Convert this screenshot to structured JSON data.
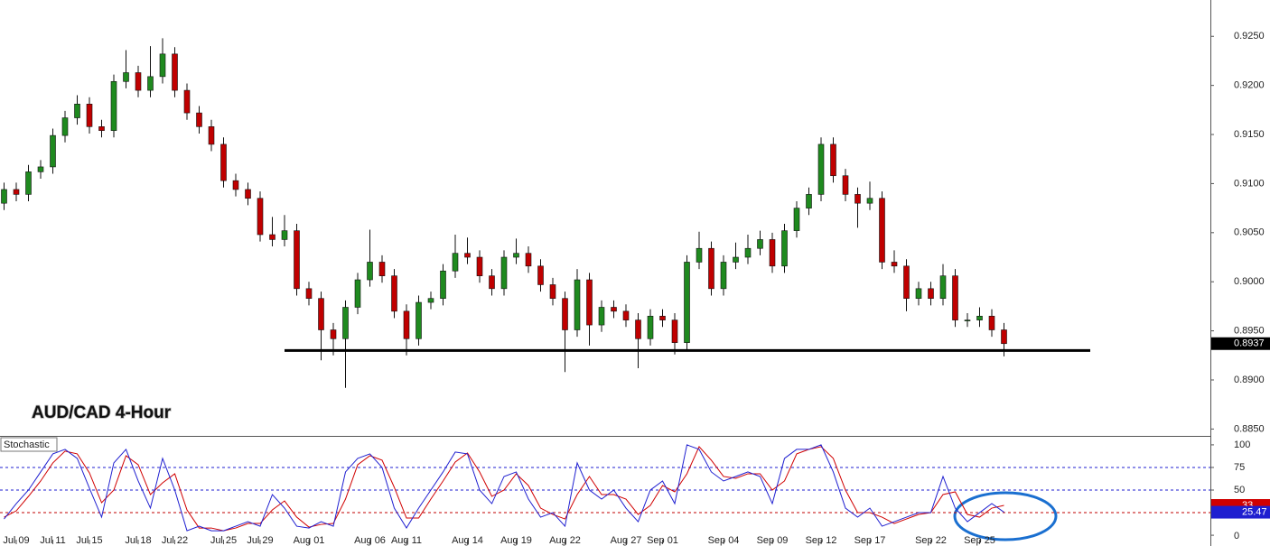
{
  "chart_data": [
    {
      "type": "candlestick",
      "title": "AUD/CAD 4-Hour",
      "up_color": "#1f8a1f",
      "down_color": "#c00000",
      "categories": [
        null,
        "Jul 09",
        null,
        null,
        "Jul 11",
        null,
        null,
        "Jul 15",
        null,
        null,
        null,
        "Jul 18",
        null,
        null,
        "Jul 22",
        null,
        null,
        null,
        "Jul 25",
        null,
        null,
        "Jul 29",
        null,
        null,
        null,
        "Aug 01",
        null,
        null,
        null,
        null,
        "Aug 06",
        null,
        null,
        "Aug 11",
        null,
        null,
        null,
        null,
        "Aug 14",
        null,
        null,
        null,
        "Aug 19",
        null,
        null,
        null,
        "Aug 22",
        null,
        null,
        null,
        null,
        "Aug 27",
        null,
        null,
        "Sep 01",
        null,
        null,
        null,
        null,
        "Sep 04",
        null,
        null,
        null,
        "Sep 09",
        null,
        null,
        null,
        "Sep 12",
        null,
        null,
        null,
        "Sep 17",
        null,
        null,
        null,
        null,
        "Sep 22",
        null,
        null,
        null,
        "Sep 25",
        null,
        null
      ],
      "open": [
        0.908,
        0.9094,
        0.9089,
        0.9112,
        0.9117,
        0.9149,
        0.9167,
        0.9181,
        0.9158,
        0.9154,
        0.9204,
        0.9213,
        0.9195,
        0.9209,
        0.9232,
        0.9195,
        0.9172,
        0.9158,
        0.914,
        0.9103,
        0.9094,
        0.9085,
        0.9048,
        0.9043,
        0.9052,
        0.8993,
        0.8983,
        0.8951,
        0.8942,
        0.8974,
        0.9002,
        0.902,
        0.9006,
        0.897,
        0.8942,
        0.8979,
        0.8983,
        0.9011,
        0.9029,
        0.9025,
        0.9006,
        0.8993,
        0.9025,
        0.9029,
        0.9016,
        0.8997,
        0.8983,
        0.8951,
        0.9002,
        0.8956,
        0.8974,
        0.897,
        0.8961,
        0.8942,
        0.8965,
        0.8961,
        0.8938,
        0.902,
        0.9034,
        0.8993,
        0.902,
        0.9025,
        0.9034,
        0.9043,
        0.9016,
        0.9052,
        0.9075,
        0.9089,
        0.914,
        0.9108,
        0.9089,
        0.908,
        0.9085,
        0.902,
        0.9016,
        0.8983,
        0.8993,
        0.8983,
        0.9006,
        0.8961,
        0.8961,
        0.8965,
        0.8951
      ],
      "high": [
        0.9101,
        0.9101,
        0.9119,
        0.9124,
        0.9156,
        0.9174,
        0.919,
        0.9188,
        0.9165,
        0.9211,
        0.9236,
        0.922,
        0.924,
        0.9248,
        0.9239,
        0.9202,
        0.9179,
        0.9165,
        0.9147,
        0.911,
        0.9101,
        0.9092,
        0.9066,
        0.9068,
        0.9059,
        0.9,
        0.899,
        0.8958,
        0.8981,
        0.9009,
        0.9053,
        0.9027,
        0.9013,
        0.8977,
        0.8986,
        0.899,
        0.9018,
        0.9048,
        0.9045,
        0.9032,
        0.9013,
        0.9032,
        0.9044,
        0.9036,
        0.9023,
        0.9004,
        0.899,
        0.9013,
        0.9009,
        0.8981,
        0.8981,
        0.8977,
        0.8968,
        0.8972,
        0.8972,
        0.8968,
        0.9027,
        0.9051,
        0.9041,
        0.9027,
        0.904,
        0.9048,
        0.9052,
        0.905,
        0.9059,
        0.9082,
        0.9096,
        0.9147,
        0.9147,
        0.9115,
        0.9096,
        0.9102,
        0.9092,
        0.9032,
        0.9023,
        0.9,
        0.9,
        0.9018,
        0.9013,
        0.8968,
        0.8974,
        0.8972,
        0.8958
      ],
      "low": [
        0.9073,
        0.9082,
        0.9082,
        0.9105,
        0.911,
        0.9142,
        0.916,
        0.9151,
        0.9147,
        0.9147,
        0.9197,
        0.9188,
        0.9188,
        0.9202,
        0.9188,
        0.9165,
        0.9151,
        0.9133,
        0.9096,
        0.9087,
        0.9078,
        0.9041,
        0.9036,
        0.9036,
        0.8986,
        0.8976,
        0.892,
        0.8925,
        0.8892,
        0.8967,
        0.8995,
        0.8999,
        0.8963,
        0.8925,
        0.8935,
        0.8972,
        0.8976,
        0.9004,
        0.9018,
        0.8999,
        0.8986,
        0.8986,
        0.9018,
        0.9009,
        0.899,
        0.8976,
        0.8908,
        0.8944,
        0.8935,
        0.8949,
        0.8963,
        0.8954,
        0.8912,
        0.8935,
        0.8954,
        0.8926,
        0.8931,
        0.9013,
        0.8986,
        0.8986,
        0.9013,
        0.9018,
        0.9027,
        0.9009,
        0.9009,
        0.9045,
        0.9068,
        0.9082,
        0.9101,
        0.9082,
        0.9055,
        0.9073,
        0.9013,
        0.9009,
        0.897,
        0.8976,
        0.8976,
        0.8976,
        0.8954,
        0.8954,
        0.8954,
        0.8944,
        0.8924
      ],
      "close": [
        0.9094,
        0.9089,
        0.9112,
        0.9117,
        0.9149,
        0.9167,
        0.9181,
        0.9158,
        0.9154,
        0.9204,
        0.9213,
        0.9195,
        0.9209,
        0.9232,
        0.9195,
        0.9172,
        0.9158,
        0.914,
        0.9103,
        0.9094,
        0.9085,
        0.9048,
        0.9043,
        0.9052,
        0.8993,
        0.8983,
        0.8951,
        0.8942,
        0.8974,
        0.9002,
        0.902,
        0.9006,
        0.897,
        0.8942,
        0.8979,
        0.8983,
        0.9011,
        0.9029,
        0.9025,
        0.9006,
        0.8993,
        0.9025,
        0.9029,
        0.9016,
        0.8997,
        0.8983,
        0.8951,
        0.9002,
        0.8956,
        0.8974,
        0.897,
        0.8961,
        0.8942,
        0.8965,
        0.8961,
        0.8938,
        0.902,
        0.9034,
        0.8993,
        0.902,
        0.9025,
        0.9034,
        0.9043,
        0.9016,
        0.9052,
        0.9075,
        0.9089,
        0.914,
        0.9108,
        0.9089,
        0.908,
        0.9085,
        0.902,
        0.9016,
        0.8983,
        0.8993,
        0.8983,
        0.9006,
        0.8961,
        0.8961,
        0.8965,
        0.8951,
        0.8937
      ],
      "support_level": 0.893,
      "ylim": [
        0.8843,
        0.9287
      ],
      "yticks": [
        {
          "value": 0.885,
          "label": "0.8850"
        },
        {
          "value": 0.89,
          "label": "0.8900"
        },
        {
          "value": 0.895,
          "label": "0.8950"
        },
        {
          "value": 0.9,
          "label": "0.9000"
        },
        {
          "value": 0.905,
          "label": "0.9050"
        },
        {
          "value": 0.91,
          "label": "0.9100"
        },
        {
          "value": 0.915,
          "label": "0.9150"
        },
        {
          "value": 0.92,
          "label": "0.9200"
        },
        {
          "value": 0.925,
          "label": "0.9250"
        }
      ]
    },
    {
      "type": "line",
      "title": "Stochastic",
      "series": [
        {
          "name": "%K",
          "color": "#1f1fd0",
          "values": [
            18,
            35,
            50,
            70,
            90,
            95,
            85,
            52,
            20,
            80,
            95,
            60,
            30,
            85,
            50,
            5,
            10,
            5,
            5,
            10,
            15,
            10,
            45,
            30,
            10,
            8,
            15,
            10,
            70,
            85,
            90,
            75,
            30,
            8,
            30,
            50,
            70,
            92,
            90,
            50,
            35,
            65,
            70,
            40,
            20,
            25,
            10,
            80,
            50,
            40,
            50,
            30,
            15,
            50,
            60,
            35,
            100,
            95,
            70,
            60,
            65,
            70,
            65,
            35,
            85,
            95,
            95,
            100,
            70,
            30,
            20,
            30,
            10,
            15,
            20,
            25,
            25,
            65,
            30,
            15,
            25,
            35,
            25.47
          ]
        },
        {
          "name": "%D",
          "color": "#d00000",
          "values": [
            20,
            27,
            43,
            60,
            80,
            93,
            90,
            69,
            36,
            50,
            88,
            78,
            45,
            58,
            68,
            28,
            8,
            8,
            5,
            8,
            13,
            13,
            28,
            38,
            20,
            9,
            12,
            13,
            40,
            78,
            88,
            83,
            53,
            19,
            19,
            40,
            60,
            81,
            91,
            70,
            43,
            50,
            68,
            55,
            30,
            23,
            18,
            45,
            65,
            45,
            45,
            40,
            23,
            33,
            55,
            48,
            68,
            98,
            83,
            65,
            63,
            68,
            68,
            50,
            60,
            90,
            95,
            98,
            85,
            50,
            25,
            25,
            20,
            13,
            18,
            23,
            25,
            45,
            48,
            23,
            20,
            30,
            33
          ]
        }
      ],
      "levels": [
        {
          "value": 25,
          "color": "#c00000"
        },
        {
          "value": 50,
          "color": "#1f1fd0"
        },
        {
          "value": 75,
          "color": "#1f1fd0"
        }
      ],
      "ylim": [
        -11.9,
        108.9
      ],
      "yticks": [
        0,
        50,
        75,
        100
      ]
    }
  ]
}
